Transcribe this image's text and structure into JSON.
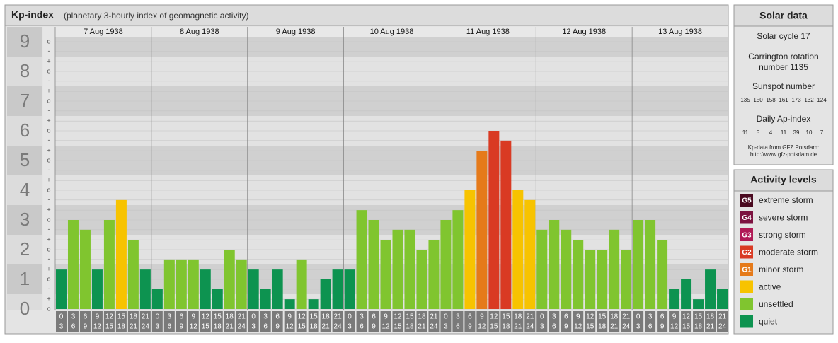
{
  "header": {
    "title": "Kp-index",
    "subtitle": "(planetary 3-hourly index of geomagnetic activity)"
  },
  "chart_data": {
    "type": "bar",
    "days": [
      "7 Aug 1938",
      "8 Aug 1938",
      "9 Aug 1938",
      "10 Aug 1938",
      "11 Aug 1938",
      "12 Aug 1938",
      "13 Aug 1938"
    ],
    "hours": [
      "0",
      "3",
      "6",
      "9",
      "12",
      "15",
      "18",
      "21",
      "24"
    ],
    "values": [
      1.33,
      3,
      2.67,
      1.33,
      3,
      3.67,
      2.33,
      1.33,
      0.67,
      1.67,
      1.67,
      1.67,
      1.33,
      0.67,
      2,
      1.67,
      1.33,
      0.67,
      1.33,
      0.33,
      1.67,
      0.33,
      1,
      1.33,
      1.33,
      3.33,
      3,
      2.33,
      2.67,
      2.67,
      2,
      2.33,
      3,
      3.33,
      4,
      5.33,
      6,
      5.67,
      4,
      3.67,
      2.67,
      3,
      2.67,
      2.33,
      2,
      2,
      2.67,
      2,
      3,
      3,
      2.33,
      0.67,
      1,
      0.33,
      1.33,
      0.67
    ],
    "colors": [
      "#0d9350",
      "#80c52f",
      "#80c52f",
      "#0d9350",
      "#80c52f",
      "#f7c300",
      "#80c52f",
      "#0d9350",
      "#0d9350",
      "#80c52f",
      "#80c52f",
      "#80c52f",
      "#0d9350",
      "#0d9350",
      "#80c52f",
      "#80c52f",
      "#0d9350",
      "#0d9350",
      "#0d9350",
      "#0d9350",
      "#80c52f",
      "#0d9350",
      "#0d9350",
      "#0d9350",
      "#0d9350",
      "#80c52f",
      "#80c52f",
      "#80c52f",
      "#80c52f",
      "#80c52f",
      "#80c52f",
      "#80c52f",
      "#80c52f",
      "#80c52f",
      "#f7c300",
      "#e57a1a",
      "#d93a23",
      "#d93a23",
      "#f7c300",
      "#f7c300",
      "#80c52f",
      "#80c52f",
      "#80c52f",
      "#80c52f",
      "#80c52f",
      "#80c52f",
      "#80c52f",
      "#80c52f",
      "#80c52f",
      "#80c52f",
      "#80c52f",
      "#0d9350",
      "#0d9350",
      "#0d9350",
      "#0d9350",
      "#0d9350"
    ],
    "ylim": [
      0,
      9.5
    ],
    "yticks": [
      0,
      1,
      2,
      3,
      4,
      5,
      6,
      7,
      8,
      9
    ],
    "subticks": [
      {
        "value": 0,
        "label": "o"
      },
      {
        "value": 0.33,
        "label": "+"
      },
      {
        "value": 0.67,
        "label": "-"
      },
      {
        "value": 1,
        "label": "o"
      },
      {
        "value": 1.33,
        "label": "+"
      },
      {
        "value": 1.67,
        "label": "-"
      },
      {
        "value": 2,
        "label": "o"
      },
      {
        "value": 2.33,
        "label": "+"
      },
      {
        "value": 2.67,
        "label": "-"
      },
      {
        "value": 3,
        "label": "o"
      },
      {
        "value": 3.33,
        "label": "+"
      },
      {
        "value": 3.67,
        "label": "-"
      },
      {
        "value": 4,
        "label": "o"
      },
      {
        "value": 4.33,
        "label": "+"
      },
      {
        "value": 4.67,
        "label": "-"
      },
      {
        "value": 5,
        "label": "o"
      },
      {
        "value": 5.33,
        "label": "+"
      },
      {
        "value": 5.67,
        "label": "-"
      },
      {
        "value": 6,
        "label": "o"
      },
      {
        "value": 6.33,
        "label": "+"
      },
      {
        "value": 6.67,
        "label": "-"
      },
      {
        "value": 7,
        "label": "o"
      },
      {
        "value": 7.33,
        "label": "+"
      },
      {
        "value": 7.67,
        "label": "-"
      },
      {
        "value": 8,
        "label": "o"
      },
      {
        "value": 8.33,
        "label": "+"
      },
      {
        "value": 8.67,
        "label": "-"
      },
      {
        "value": 9,
        "label": "o"
      }
    ],
    "grid": true
  },
  "solar_data": {
    "title": "Solar data",
    "cycle": "Solar cycle 17",
    "carrington": [
      "Carrington rotation",
      "number 1135"
    ],
    "sunspot_title": "Sunspot number",
    "sunspot": [
      135,
      150,
      158,
      161,
      173,
      132,
      124
    ],
    "ap_title": "Daily Ap-index",
    "ap": [
      11,
      5,
      4,
      11,
      39,
      10,
      7
    ],
    "source": [
      "Kp-data from GFZ Potsdam:",
      "http://www.gfz-potsdam.de"
    ]
  },
  "activity_levels": {
    "title": "Activity levels",
    "items": [
      {
        "badge": "G5",
        "label": "extreme storm",
        "color": "#4a0a20"
      },
      {
        "badge": "G4",
        "label": "severe storm",
        "color": "#7c1240"
      },
      {
        "badge": "G3",
        "label": "strong storm",
        "color": "#b01a55"
      },
      {
        "badge": "G2",
        "label": "moderate storm",
        "color": "#d93a23"
      },
      {
        "badge": "G1",
        "label": "minor storm",
        "color": "#e57a1a"
      },
      {
        "label": "active",
        "color": "#f7c300"
      },
      {
        "label": "unsettled",
        "color": "#80c52f"
      },
      {
        "label": "quiet",
        "color": "#0d9350"
      }
    ]
  }
}
